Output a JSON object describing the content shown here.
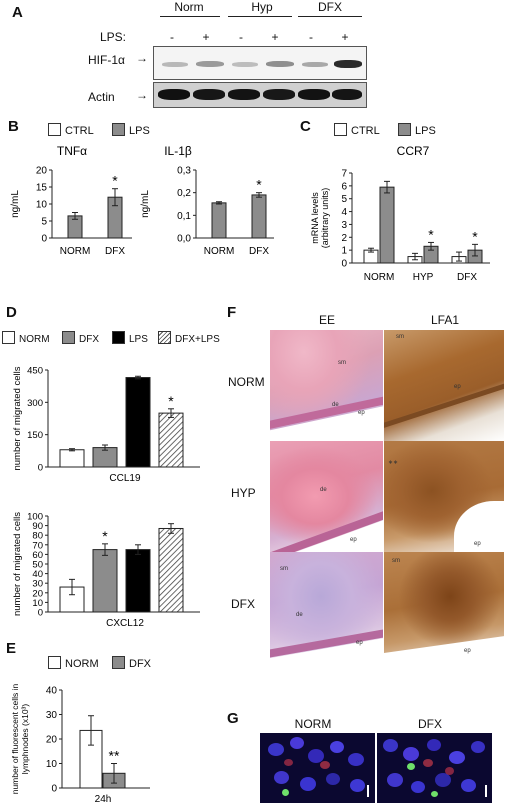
{
  "panels": {
    "A": {
      "label": "A",
      "groups": [
        "Norm",
        "Hyp",
        "DFX"
      ],
      "lps_label": "LPS:",
      "lps_states": [
        "-",
        "+",
        "-",
        "+",
        "-",
        "+"
      ],
      "rows": [
        "HIF-1α",
        "Actin"
      ]
    },
    "B": {
      "label": "B",
      "legend": [
        "CTRL",
        "LPS"
      ],
      "charts": [
        {
          "type": "bar",
          "title": "TNFα",
          "ylabel": "ng/mL",
          "categories": [
            "NORM",
            "DFX"
          ],
          "values": [
            6.5,
            12
          ],
          "errors": [
            1,
            2.5
          ],
          "ylim": [
            0,
            20
          ],
          "yticks": [
            "0",
            "5",
            "10",
            "15",
            "20"
          ],
          "star": [
            false,
            true
          ],
          "star_text": "*"
        },
        {
          "type": "bar",
          "title": "IL-1β",
          "ylabel": "ng/mL",
          "categories": [
            "NORM",
            "DFX"
          ],
          "values": [
            0.155,
            0.19
          ],
          "errors": [
            0.005,
            0.01
          ],
          "ylim": [
            0,
            0.3
          ],
          "yticks": [
            "0,0",
            "0,1",
            "0,2",
            "0,3"
          ],
          "star": [
            false,
            true
          ],
          "star_text": "*"
        }
      ]
    },
    "C": {
      "label": "C",
      "legend": [
        "CTRL",
        "LPS"
      ],
      "chart": {
        "type": "bar",
        "title": "CCR7",
        "ylabel": "mRNA levels",
        "ylabel2": "(arbitrary units)",
        "categories": [
          "NORM",
          "HYP",
          "DFX"
        ],
        "series": [
          {
            "name": "CTRL",
            "values": [
              1,
              0.5,
              0.5
            ],
            "errors": [
              0.15,
              0.25,
              0.35
            ]
          },
          {
            "name": "LPS",
            "values": [
              5.9,
              1.3,
              1.0
            ],
            "errors": [
              0.45,
              0.3,
              0.45
            ]
          }
        ],
        "ylim": [
          0,
          7
        ],
        "yticks": [
          "0",
          "1",
          "2",
          "3",
          "4",
          "5",
          "6",
          "7"
        ],
        "star": [
          false,
          true,
          true
        ],
        "star_text": "*"
      }
    },
    "D": {
      "label": "D",
      "legend": [
        "NORM",
        "DFX",
        "LPS",
        "DFX+LPS"
      ],
      "charts": [
        {
          "type": "bar",
          "ylabel": "number of migrated cells",
          "xlabel": "CCL19",
          "values": [
            80,
            90,
            415,
            250
          ],
          "errors": [
            5,
            12,
            6,
            20
          ],
          "ylim": [
            0,
            450
          ],
          "yticks": [
            "0",
            "150",
            "300",
            "450"
          ],
          "star_index": 3,
          "star_text": "*"
        },
        {
          "type": "bar",
          "ylabel": "number of migrated cells",
          "xlabel": "CXCL12",
          "values": [
            26,
            65,
            65,
            87
          ],
          "errors": [
            8,
            6,
            5,
            5
          ],
          "ylim": [
            0,
            100
          ],
          "yticks": [
            "0",
            "10",
            "20",
            "30",
            "40",
            "50",
            "60",
            "70",
            "80",
            "90",
            "100"
          ],
          "star_index": 1,
          "star_text": "*"
        }
      ]
    },
    "E": {
      "label": "E",
      "legend": [
        "NORM",
        "DFX"
      ],
      "chart": {
        "type": "bar",
        "ylabel": "number of fluorescent cells in",
        "ylabel2": "lymphnodes (x10³)",
        "categories": [
          "24h"
        ],
        "values": [
          23.5,
          6
        ],
        "errors": [
          6,
          4
        ],
        "ylim": [
          0,
          40
        ],
        "yticks": [
          "0",
          "10",
          "20",
          "30",
          "40"
        ],
        "star_text": "**"
      }
    },
    "F": {
      "label": "F",
      "columns": [
        "EE",
        "LFA1"
      ],
      "rows": [
        "NORM",
        "HYP",
        "DFX"
      ],
      "tags": [
        "sm",
        "de",
        "ep",
        "∗∗"
      ]
    },
    "G": {
      "label": "G",
      "columns": [
        "NORM",
        "DFX"
      ]
    }
  },
  "colors": {
    "ctrl": "#ffffff",
    "lps": "#8c8c8c",
    "lps_black": "#000000",
    "he_pink": "#e3a3b3",
    "dab_brown": "#a6692e"
  }
}
